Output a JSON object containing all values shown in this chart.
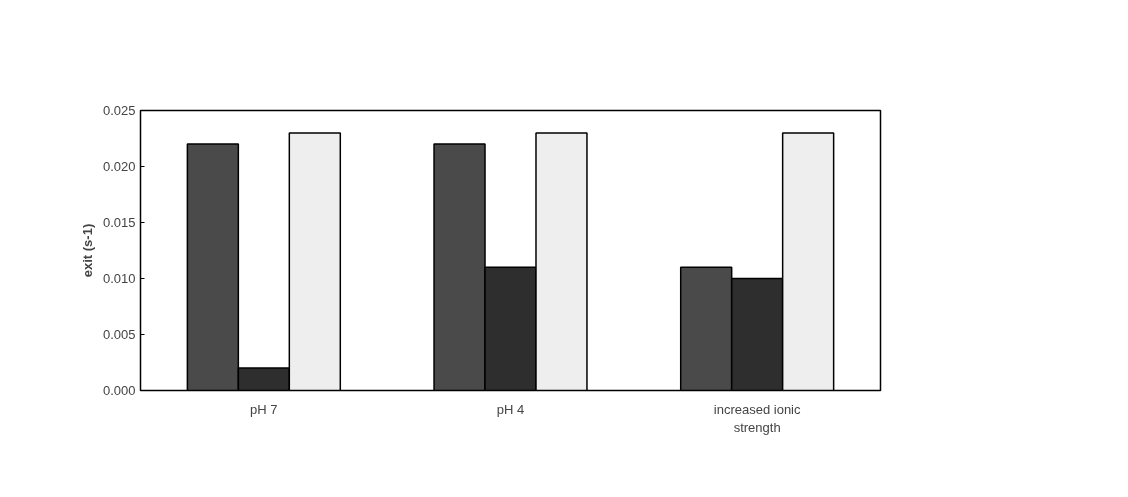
{
  "chart_data": {
    "type": "bar",
    "ylabel": "exit (s-1)",
    "categories": [
      "pH 7",
      "pH 4",
      "increased ionic strength"
    ],
    "series": [
      {
        "color": "#4a4a4a",
        "values": [
          0.022,
          0.022,
          0.011
        ]
      },
      {
        "color": "#2e2e2e",
        "values": [
          0.002,
          0.011,
          0.01
        ]
      },
      {
        "color": "#eeeeee",
        "values": [
          0.023,
          0.023,
          0.023
        ]
      }
    ],
    "ylim": [
      0,
      0.025
    ],
    "yticks": [
      {
        "value": 0,
        "label": "0.000"
      },
      {
        "value": 0.005,
        "label": "0.005"
      },
      {
        "value": 0.01,
        "label": "0.010"
      },
      {
        "value": 0.015,
        "label": "0.015"
      },
      {
        "value": 0.02,
        "label": "0.020"
      },
      {
        "value": 0.025,
        "label": "0.025"
      }
    ],
    "grid": false
  }
}
